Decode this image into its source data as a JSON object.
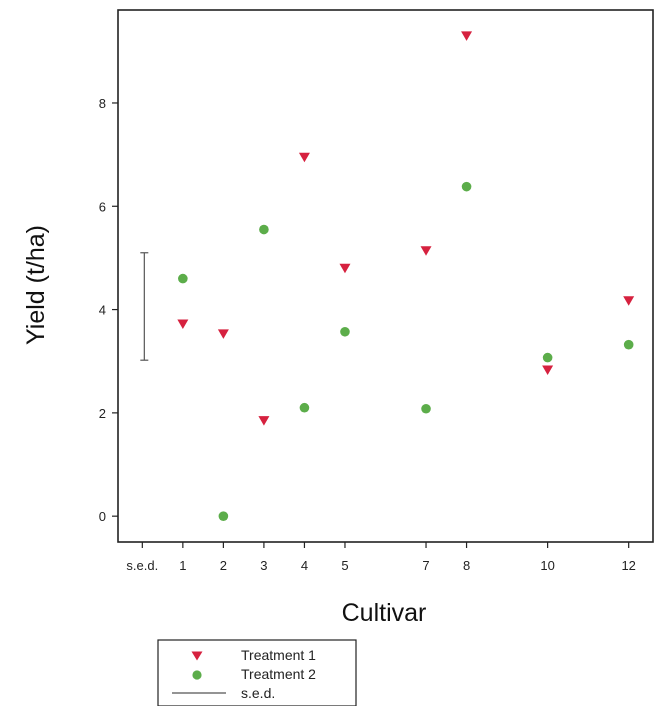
{
  "chart_data": {
    "type": "scatter",
    "xlabel": "Cultivar",
    "ylabel": "Yield (t/ha)",
    "x_ticks": [
      {
        "pos": 0,
        "label": "s.e.d."
      },
      {
        "pos": 1,
        "label": "1"
      },
      {
        "pos": 2,
        "label": "2"
      },
      {
        "pos": 3,
        "label": "3"
      },
      {
        "pos": 4,
        "label": "4"
      },
      {
        "pos": 5,
        "label": "5"
      },
      {
        "pos": 7,
        "label": "7"
      },
      {
        "pos": 8,
        "label": "8"
      },
      {
        "pos": 10,
        "label": "10"
      },
      {
        "pos": 12,
        "label": "12"
      }
    ],
    "y_ticks": [
      0,
      2,
      4,
      6,
      8
    ],
    "xlim": [
      -0.6,
      12.6
    ],
    "ylim": [
      -0.5,
      9.8
    ],
    "series": [
      {
        "name": "Treatment 1",
        "marker": "triangle-down",
        "color": "#d6213f",
        "points": [
          {
            "x": 1,
            "y": 3.72
          },
          {
            "x": 2,
            "y": 3.53
          },
          {
            "x": 3,
            "y": 1.85
          },
          {
            "x": 4,
            "y": 6.95
          },
          {
            "x": 5,
            "y": 4.8
          },
          {
            "x": 7,
            "y": 5.14
          },
          {
            "x": 8,
            "y": 9.3
          },
          {
            "x": 10,
            "y": 2.83
          },
          {
            "x": 12,
            "y": 4.17
          }
        ]
      },
      {
        "name": "Treatment 2",
        "marker": "circle",
        "color": "#5cad4a",
        "points": [
          {
            "x": 1,
            "y": 4.6
          },
          {
            "x": 2,
            "y": 0.0
          },
          {
            "x": 3,
            "y": 5.55
          },
          {
            "x": 4,
            "y": 2.1
          },
          {
            "x": 5,
            "y": 3.57
          },
          {
            "x": 7,
            "y": 2.08
          },
          {
            "x": 8,
            "y": 6.38
          },
          {
            "x": 10,
            "y": 3.07
          },
          {
            "x": 12,
            "y": 3.32
          }
        ]
      }
    ],
    "sed_bar": {
      "x": 0,
      "y_low": 3.02,
      "y_high": 5.1,
      "label": "s.e.d."
    },
    "legend": {
      "placement": "bottom-left, below plot",
      "entries": [
        {
          "label": "Treatment 1",
          "marker": "triangle-down",
          "color": "#d6213f"
        },
        {
          "label": "Treatment 2",
          "marker": "circle",
          "color": "#5cad4a"
        },
        {
          "label": "s.e.d.",
          "marker": "line",
          "color": "#555555"
        }
      ]
    },
    "grid": false
  }
}
